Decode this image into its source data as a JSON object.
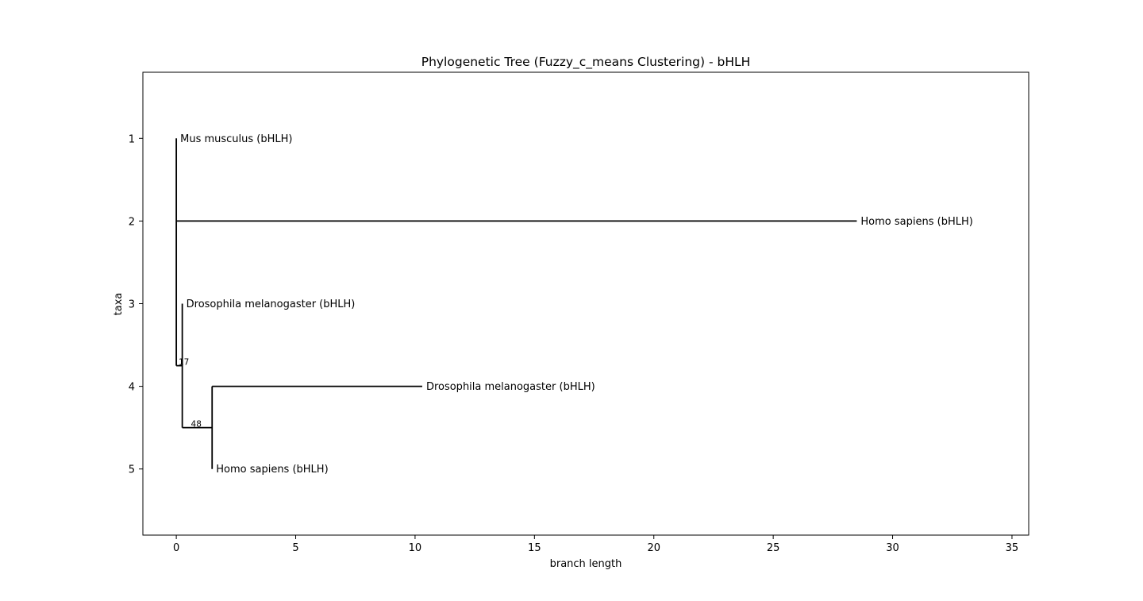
{
  "chart_data": {
    "type": "phylogenetic-tree",
    "title": "Phylogenetic Tree (Fuzzy_c_means Clustering) - bHLH",
    "xlabel": "branch length",
    "ylabel": "taxa",
    "xlim": [
      -1.4,
      35.7
    ],
    "ylim": [
      5.8,
      0.2
    ],
    "xticks": [
      0,
      5,
      10,
      15,
      20,
      25,
      30,
      35
    ],
    "yticks": [
      1,
      2,
      3,
      4,
      5
    ],
    "grid": false,
    "legend": "none",
    "color": "#000000",
    "leaves": [
      {
        "name": "Mus musculus (bHLH)",
        "x": 0.0,
        "y": 1
      },
      {
        "name": "Homo sapiens (bHLH)",
        "x": 28.5,
        "y": 2
      },
      {
        "name": "Drosophila melanogaster (bHLH)",
        "x": 0.25,
        "y": 3
      },
      {
        "name": "Drosophila melanogaster (bHLH)",
        "x": 10.3,
        "y": 4
      },
      {
        "name": "Homo sapiens (bHLH)",
        "x": 1.5,
        "y": 5
      }
    ],
    "clades": [
      {
        "id": "root",
        "x": 0.0,
        "y": 2.0,
        "y_span": [
          1,
          3.75
        ],
        "support": ""
      },
      {
        "id": "c1",
        "x": 0.25,
        "y": 3.75,
        "y_span": [
          3,
          4.5
        ],
        "support": "17"
      },
      {
        "id": "c2",
        "x": 1.5,
        "y": 4.5,
        "y_span": [
          4,
          5
        ],
        "support": "48"
      }
    ],
    "branches": [
      {
        "from": "root",
        "to_x": 0.0,
        "to_y": 1
      },
      {
        "from": "root",
        "to_x": 28.5,
        "to_y": 2
      },
      {
        "from": "root",
        "to_x": 0.25,
        "to_y": 3.75
      },
      {
        "from": "c1",
        "to_x": 0.25,
        "to_y": 3
      },
      {
        "from": "c1",
        "to_x": 1.5,
        "to_y": 4.5
      },
      {
        "from": "c2",
        "to_x": 10.3,
        "to_y": 4
      },
      {
        "from": "c2",
        "to_x": 1.5,
        "to_y": 5
      }
    ]
  }
}
